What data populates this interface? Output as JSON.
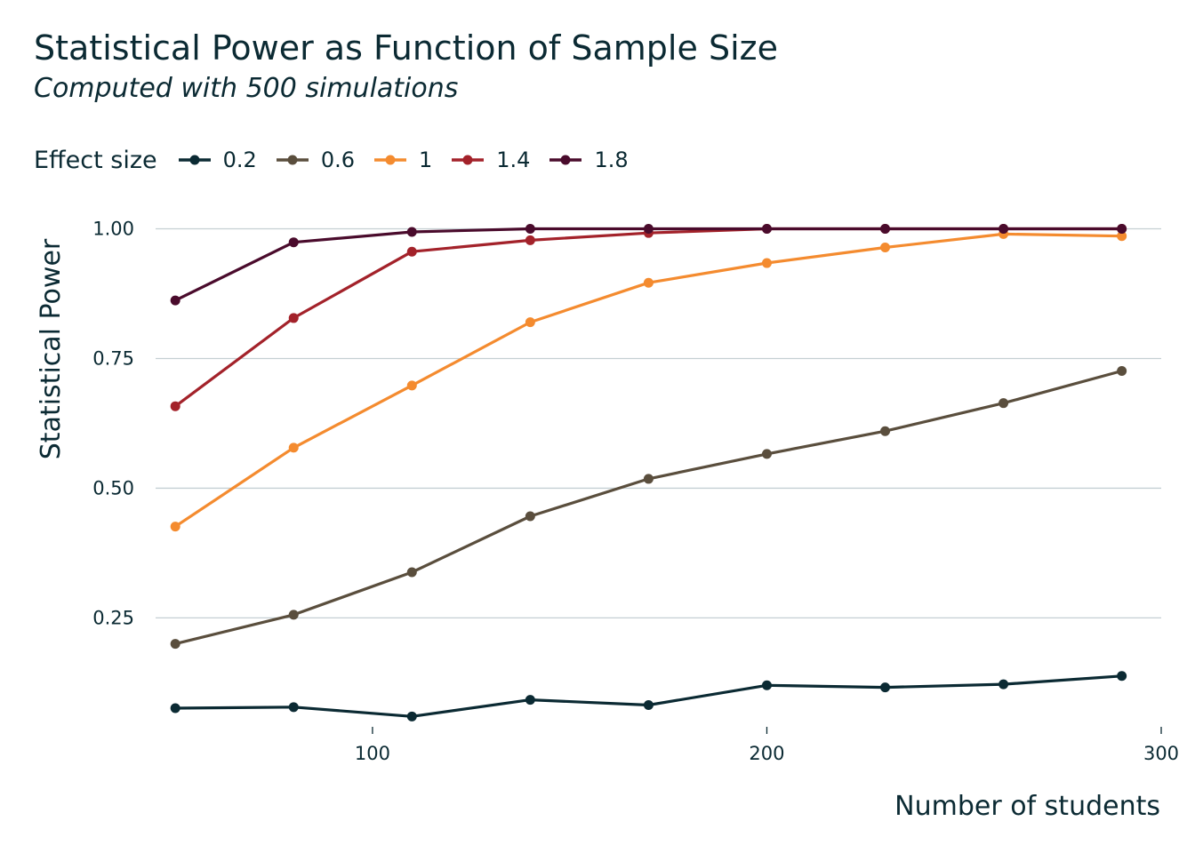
{
  "chart_data": {
    "type": "line",
    "title": "Statistical Power as Function of Sample Size",
    "subtitle": "Computed with 500 simulations",
    "xlabel": "Number of students",
    "ylabel": "Statistical Power",
    "legend_title": "Effect size",
    "legend_position": "top-left",
    "grid": "horizontal",
    "xlim": [
      45,
      300
    ],
    "ylim": [
      0.04,
      1.03
    ],
    "x_ticks": [
      100,
      200,
      300
    ],
    "x_tick_labels": [
      "100",
      "200",
      "300"
    ],
    "y_ticks": [
      0.25,
      0.5,
      0.75,
      1.0
    ],
    "y_tick_labels": [
      "0.25",
      "0.50",
      "0.75",
      "1.00"
    ],
    "x": [
      50,
      80,
      110,
      140,
      170,
      200,
      230,
      260,
      290
    ],
    "series": [
      {
        "name": "0.2",
        "color": "#0b2a33",
        "values": [
          0.076,
          0.078,
          0.06,
          0.092,
          0.082,
          0.12,
          0.116,
          0.122,
          0.138
        ]
      },
      {
        "name": "0.6",
        "color": "#5a4e3d",
        "values": [
          0.2,
          0.256,
          0.338,
          0.446,
          0.518,
          0.566,
          0.61,
          0.664,
          0.726
        ]
      },
      {
        "name": "1",
        "color": "#f48b2f",
        "values": [
          0.426,
          0.578,
          0.698,
          0.82,
          0.896,
          0.934,
          0.964,
          0.99,
          0.986
        ]
      },
      {
        "name": "1.4",
        "color": "#a3222a",
        "values": [
          0.658,
          0.828,
          0.956,
          0.978,
          0.992,
          1.0,
          1.0,
          1.0,
          1.0
        ]
      },
      {
        "name": "1.8",
        "color": "#4a0b2c",
        "values": [
          0.862,
          0.974,
          0.994,
          1.0,
          1.0,
          1.0,
          1.0,
          1.0,
          1.0
        ]
      }
    ]
  }
}
